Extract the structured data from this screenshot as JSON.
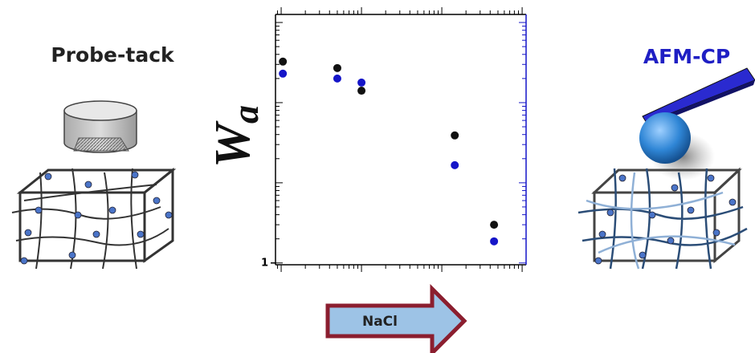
{
  "chart_data": {
    "type": "scatter",
    "left_label": "Probe-tack",
    "right_label": "AFM-CP",
    "arrow_label": "NaCl",
    "y_label": "W",
    "y_label_sub": "a",
    "x_log": true,
    "y_log": true,
    "xlim": [
      0.85,
      1120
    ],
    "ylim": [
      0.95,
      1260
    ],
    "yticks": [
      1
    ],
    "series": [
      {
        "color": "#111111",
        "x": [
          1.05,
          5,
          10,
          145,
          447
        ],
        "values": [
          325,
          270,
          141,
          39,
          3.0
        ]
      },
      {
        "color": "#1515c8",
        "axis": "y2",
        "x": [
          1.05,
          5,
          10,
          145,
          447
        ],
        "values": [
          230,
          200,
          178,
          16.6,
          1.86
        ]
      }
    ],
    "y2lim": [
      0.95,
      1260
    ],
    "y2_color": "#1515c8"
  }
}
